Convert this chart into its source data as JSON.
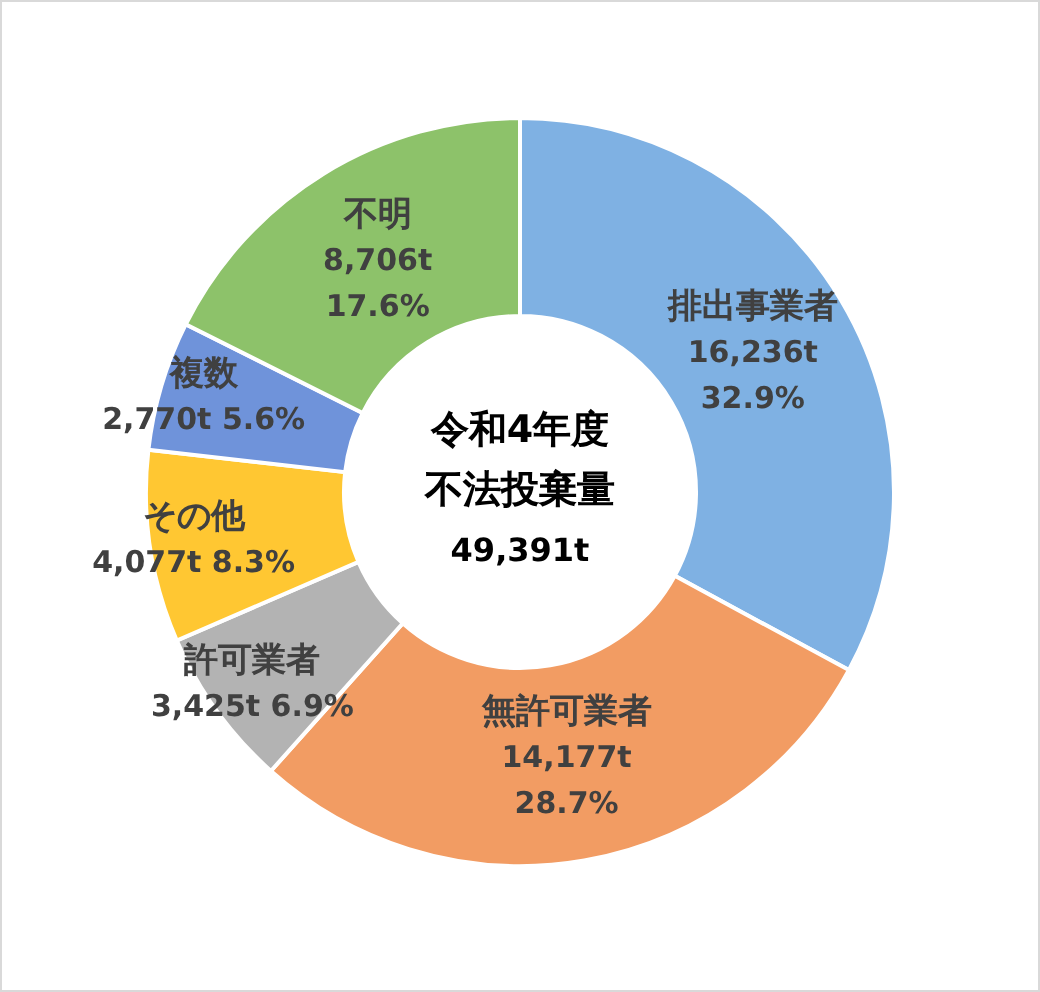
{
  "chart_data": {
    "type": "donut",
    "title": "令和4年度",
    "subtitle": "不法投棄量",
    "annotations": [
      "49,391t"
    ],
    "categories": [
      "排出事業者",
      "無許可業者",
      "許可業者",
      "その他",
      "複数",
      "不明"
    ],
    "values": [
      32.9,
      28.7,
      6.9,
      8.3,
      5.6,
      17.6
    ],
    "value_labels": [
      "16,236t 32.9%",
      "14,177t 28.7%",
      "3,425t 6.9%",
      "4,077t 8.3%",
      "2,770t 5.6%",
      "8,706t 17.6%"
    ],
    "colors": [
      "#7fb1e3",
      "#f29c63",
      "#b3b3b3",
      "#ffc732",
      "#6f93da",
      "#8dc26a"
    ]
  }
}
